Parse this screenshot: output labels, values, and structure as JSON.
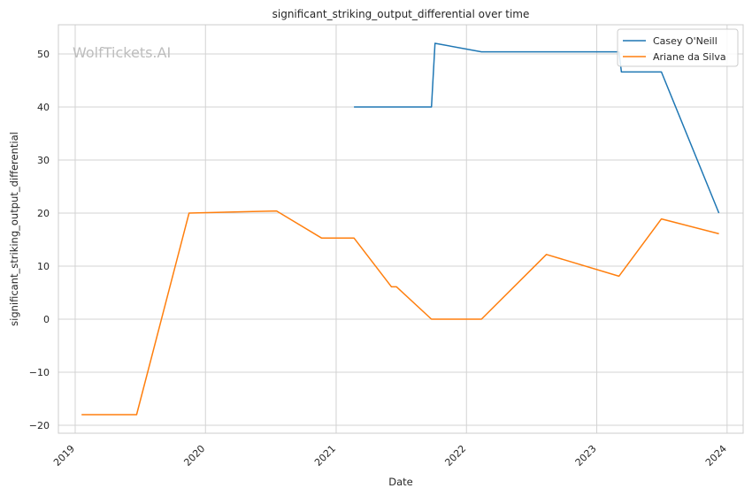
{
  "chart_data": {
    "type": "line",
    "title": "significant_striking_output_differential over time",
    "xlabel": "Date",
    "ylabel": "significant_striking_output_differential",
    "watermark": "WolfTickets.AI",
    "x_ticks": [
      "2019",
      "2020",
      "2021",
      "2022",
      "2023",
      "2024"
    ],
    "y_ticks": [
      "50",
      "40",
      "30",
      "20",
      "10",
      "0",
      "−10",
      "−20"
    ],
    "xlim": [
      "2018-11-15",
      "2024-02-15"
    ],
    "ylim": [
      -21.5,
      55.5
    ],
    "grid": true,
    "legend_position": "top-right",
    "series": [
      {
        "name": "Casey O'Neill",
        "color": "#1f77b4",
        "points": [
          [
            "2021-02-20",
            40.0
          ],
          [
            "2021-09-25",
            40.0
          ],
          [
            "2021-10-05",
            52.0
          ],
          [
            "2022-02-12",
            50.4
          ],
          [
            "2023-03-04",
            50.4
          ],
          [
            "2023-03-11",
            46.6
          ],
          [
            "2023-07-01",
            46.6
          ],
          [
            "2023-12-09",
            20.0
          ]
        ]
      },
      {
        "name": "Ariane da Silva",
        "color": "#ff7f0e",
        "points": [
          [
            "2019-01-19",
            -18.0
          ],
          [
            "2019-06-22",
            -18.0
          ],
          [
            "2019-11-16",
            20.0
          ],
          [
            "2020-07-18",
            20.4
          ],
          [
            "2020-11-21",
            15.3
          ],
          [
            "2021-02-20",
            15.3
          ],
          [
            "2021-06-05",
            6.1
          ],
          [
            "2021-06-19",
            6.1
          ],
          [
            "2021-09-25",
            0.0
          ],
          [
            "2022-02-12",
            0.0
          ],
          [
            "2022-08-13",
            12.2
          ],
          [
            "2023-03-04",
            8.1
          ],
          [
            "2023-07-01",
            18.9
          ],
          [
            "2023-12-09",
            16.1
          ]
        ]
      }
    ]
  }
}
